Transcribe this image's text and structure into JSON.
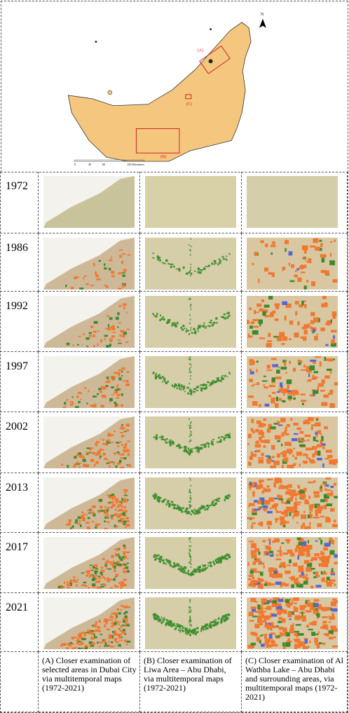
{
  "map": {
    "north": "N",
    "labels": {
      "A": "(A)",
      "B": "(B)",
      "C": "(C)"
    },
    "scale": [
      "0",
      "40",
      "80",
      "160 Kilometers"
    ]
  },
  "rows": [
    {
      "year": "1972"
    },
    {
      "year": "1986"
    },
    {
      "year": "1992"
    },
    {
      "year": "1997"
    },
    {
      "year": "2002"
    },
    {
      "year": "2013"
    },
    {
      "year": "2017"
    },
    {
      "year": "2021"
    }
  ],
  "captions": [
    "(A) Closer examination of selected areas in Dubai City via multitemporal maps (1972-2021)",
    "(B) Closer examination of Liwa Area – Abu Dhabi, via multitemporal maps (1972-2021)",
    "(C) Closer examination of Al Wathba Lake – Abu Dhabi and surrounding areas, via multitemporal maps (1972-2021)"
  ]
}
